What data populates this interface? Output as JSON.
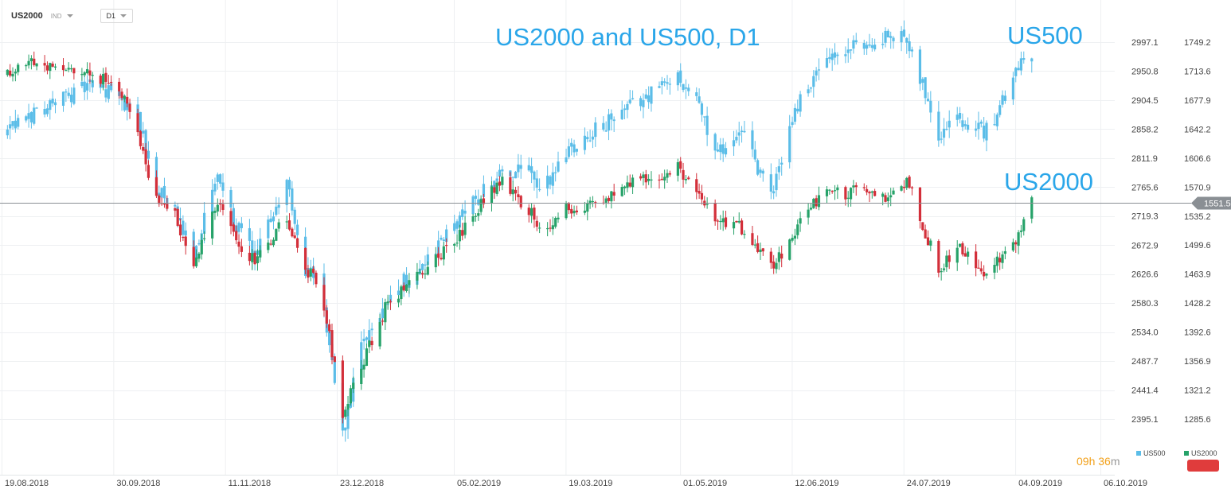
{
  "toolbar": {
    "symbol": "US2000",
    "instrument_type": "IND",
    "timeframe": "D1"
  },
  "annotations": {
    "title": "US2000 and US500, D1",
    "label_us500": "US500",
    "label_us2000": "US2000"
  },
  "timer": {
    "hours": "09",
    "hours_unit": "h",
    "minutes": "36",
    "minutes_unit": "m"
  },
  "colors": {
    "us500": "#5bbde8",
    "us2000_up": "#26a269",
    "us2000_down": "#d32f3a",
    "price_line": "#8a8f94",
    "price_badge": "#8a8f94",
    "grid": "#eef0f2",
    "axis_text": "#444444",
    "accent_title": "#2aa6e9",
    "timer": "#f2a11b"
  },
  "chart_data": {
    "type": "candlestick",
    "x_tick_labels": [
      "19.08.2018",
      "30.09.2018",
      "11.11.2018",
      "23.12.2018",
      "05.02.2019",
      "19.03.2019",
      "01.05.2019",
      "12.06.2019",
      "24.07.2019",
      "04.09.2019",
      "06.10.2019"
    ],
    "y_axis_us500": {
      "ticks": [
        2997.1,
        2950.8,
        2904.5,
        2858.2,
        2811.9,
        2765.6,
        2719.3,
        2672.9,
        2626.6,
        2580.3,
        2534.0,
        2487.7,
        2441.4,
        2395.1
      ],
      "tick_labels": [
        "2997.1",
        "2950.8",
        "2904.5",
        "2858.2",
        "2811.9",
        "2765.6",
        "2719.3",
        "2672.9",
        "2626.6",
        "2580.3",
        "2534.0",
        "2487.7",
        "2441.4",
        "2395.1"
      ],
      "range": [
        2340,
        3055
      ]
    },
    "y_axis_us2000": {
      "ticks": [
        1749.2,
        1713.6,
        1677.9,
        1642.2,
        1606.6,
        1570.9,
        1535.2,
        1499.6,
        1463.9,
        1428.2,
        1392.6,
        1356.9,
        1321.2,
        1285.6
      ],
      "tick_labels": [
        "1749.2",
        "1713.6",
        "1677.9",
        "1642.2",
        "1606.6",
        "1570.9",
        "1535.2",
        "1499.6",
        "1463.9",
        "1428.2",
        "1392.6",
        "1356.9",
        "1321.2",
        "1285.6"
      ],
      "range": [
        1232,
        1781
      ]
    },
    "current_price": {
      "value": 1551.5,
      "label": "1551.5"
    },
    "legend": [
      {
        "name": "US500",
        "color": "#5bbde8"
      },
      {
        "name": "US2000",
        "color": "#26a269"
      }
    ],
    "legend_position": "bottom-right",
    "grid": true,
    "series": [
      {
        "name": "US500",
        "axis": "left",
        "anchors": [
          [
            "19.08.2018",
            2850
          ],
          [
            "01.09.2018",
            2890
          ],
          [
            "21.09.2018",
            2930
          ],
          [
            "30.09.2018",
            2910
          ],
          [
            "08.10.2018",
            2880
          ],
          [
            "14.10.2018",
            2770
          ],
          [
            "21.10.2018",
            2730
          ],
          [
            "29.10.2018",
            2660
          ],
          [
            "07.11.2018",
            2780
          ],
          [
            "11.11.2018",
            2730
          ],
          [
            "21.11.2018",
            2650
          ],
          [
            "03.12.2018",
            2780
          ],
          [
            "08.12.2018",
            2650
          ],
          [
            "16.12.2018",
            2600
          ],
          [
            "24.12.2018",
            2370
          ],
          [
            "31.12.2018",
            2505
          ],
          [
            "10.01.2019",
            2590
          ],
          [
            "25.01.2019",
            2650
          ],
          [
            "05.02.2019",
            2710
          ],
          [
            "21.02.2019",
            2790
          ],
          [
            "05.03.2019",
            2790
          ],
          [
            "08.03.2019",
            2750
          ],
          [
            "19.03.2019",
            2830
          ],
          [
            "31.03.2019",
            2860
          ],
          [
            "15.04.2019",
            2905
          ],
          [
            "29.04.2019",
            2945
          ],
          [
            "07.05.2019",
            2895
          ],
          [
            "13.05.2019",
            2820
          ],
          [
            "23.05.2019",
            2850
          ],
          [
            "03.06.2019",
            2750
          ],
          [
            "12.06.2019",
            2890
          ],
          [
            "21.06.2019",
            2955
          ],
          [
            "05.07.2019",
            2990
          ],
          [
            "24.07.2019",
            3010
          ],
          [
            "05.08.2019",
            2850
          ],
          [
            "12.08.2019",
            2880
          ],
          [
            "22.08.2019",
            2850
          ],
          [
            "29.08.2019",
            2900
          ],
          [
            "04.09.2019",
            2965
          ],
          [
            "09.09.2019",
            2978
          ]
        ]
      },
      {
        "name": "US2000",
        "axis": "right",
        "anchors": [
          [
            "19.08.2018",
            1710
          ],
          [
            "25.08.2018",
            1725
          ],
          [
            "30.09.2018",
            1700
          ],
          [
            "08.10.2018",
            1640
          ],
          [
            "14.10.2018",
            1560
          ],
          [
            "21.10.2018",
            1545
          ],
          [
            "29.10.2018",
            1475
          ],
          [
            "07.11.2018",
            1550
          ],
          [
            "14.11.2018",
            1505
          ],
          [
            "21.11.2018",
            1480
          ],
          [
            "03.12.2018",
            1535
          ],
          [
            "08.12.2018",
            1480
          ],
          [
            "16.12.2018",
            1445
          ],
          [
            "24.12.2018",
            1295
          ],
          [
            "31.12.2018",
            1350
          ],
          [
            "10.01.2019",
            1430
          ],
          [
            "25.01.2019",
            1470
          ],
          [
            "05.02.2019",
            1510
          ],
          [
            "21.02.2019",
            1580
          ],
          [
            "05.03.2019",
            1540
          ],
          [
            "08.03.2019",
            1515
          ],
          [
            "19.03.2019",
            1545
          ],
          [
            "31.03.2019",
            1555
          ],
          [
            "15.04.2019",
            1580
          ],
          [
            "29.04.2019",
            1595
          ],
          [
            "07.05.2019",
            1565
          ],
          [
            "13.05.2019",
            1530
          ],
          [
            "23.05.2019",
            1520
          ],
          [
            "03.06.2019",
            1470
          ],
          [
            "12.06.2019",
            1515
          ],
          [
            "21.06.2019",
            1560
          ],
          [
            "05.07.2019",
            1565
          ],
          [
            "17.07.2019",
            1555
          ],
          [
            "24.07.2019",
            1580
          ],
          [
            "05.08.2019",
            1470
          ],
          [
            "12.08.2019",
            1500
          ],
          [
            "22.08.2019",
            1465
          ],
          [
            "29.08.2019",
            1490
          ],
          [
            "04.09.2019",
            1510
          ],
          [
            "09.09.2019",
            1550
          ]
        ]
      }
    ]
  }
}
